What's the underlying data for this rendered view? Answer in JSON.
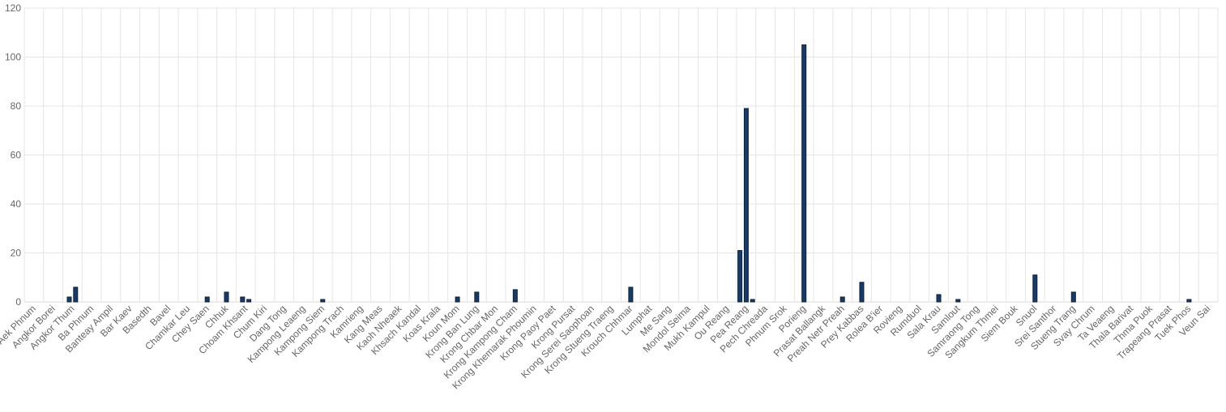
{
  "chart_data": {
    "type": "bar",
    "title": "",
    "xlabel": "",
    "ylabel": "",
    "ylim": [
      0,
      120
    ],
    "yticks": [
      0,
      20,
      40,
      60,
      80,
      100,
      120
    ],
    "grid": true,
    "legend": "none",
    "colors": {
      "bar": "#1a3a66",
      "grid": "#e5e5e5",
      "text": "#666666"
    },
    "categories": [
      "Aek Phnum",
      "Angkor Borei",
      "Angkor Thum",
      "Ba Phnum",
      "Banteay Ampil",
      "Bar Kaev",
      "Basedth",
      "Bavel",
      "Chamkar Leu",
      "Chey Saen",
      "Chhuk",
      "Choam Khsant",
      "Chum Kiri",
      "Dang Tong",
      "Kampong Leaeng",
      "Kampong Siem",
      "Kampong Trach",
      "Kamrieng",
      "Kang Meas",
      "Kaoh Nheaek",
      "Khsach Kandal",
      "Koas Krala",
      "Koun Mom",
      "Krong Ban Lung",
      "Krong Chbar Mon",
      "Krong Kampong Cham",
      "Krong Khemarak Phoumin",
      "Krong Paoy Paet",
      "Krong Pursat",
      "Krong Serei Saophoan",
      "Krong Stueng Traeng",
      "Krouch Chhmar",
      "Lumphat",
      "Me Sang",
      "Mondol Seima",
      "Mukh Kampul",
      "Ou Reang",
      "Pea Reang",
      "Pech Chreada",
      "Phnum Srok",
      "Porieng",
      "Prasat Ballangk",
      "Preah Netr Preah",
      "Prey Kabbas",
      "Rolea B'ier",
      "Rovieng",
      "Rumduol",
      "Sala Krau",
      "Samlout",
      "Samraong Tong",
      "Sangkum Thmei",
      "Siem Bouk",
      "Snuol",
      "Srei Santhor",
      "Stueng Trang",
      "Svay Chrum",
      "Ta Veaeng",
      "Thala Barivat",
      "Thma Puok",
      "Trapeang Prasat",
      "Tuek Phos",
      "Veun Sai"
    ],
    "series": [
      {
        "bars": [
          [],
          [],
          [
            2,
            6
          ],
          [],
          [],
          [],
          [],
          [],
          [],
          [
            2
          ],
          [
            4
          ],
          [
            2,
            1
          ],
          [],
          [],
          [],
          [
            1
          ],
          [],
          [],
          [],
          [],
          [],
          [],
          [
            2
          ],
          [
            4
          ],
          [],
          [
            5
          ],
          [],
          [],
          [],
          [],
          [],
          [
            6
          ],
          [],
          [],
          [],
          [],
          [],
          [
            21,
            79,
            1
          ],
          [],
          [],
          [
            105
          ],
          [],
          [
            2
          ],
          [
            8
          ],
          [],
          [],
          [],
          [
            3
          ],
          [
            1
          ],
          [],
          [],
          [],
          [
            11
          ],
          [],
          [
            4
          ],
          [],
          [],
          [],
          [],
          [],
          [
            1
          ],
          []
        ]
      }
    ]
  }
}
